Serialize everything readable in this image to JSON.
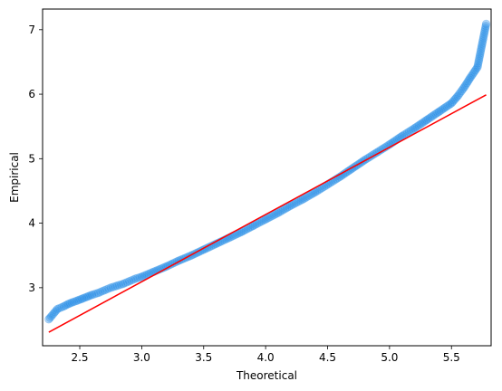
{
  "chart_data": {
    "type": "scatter",
    "title": "",
    "xlabel": "Theoretical",
    "ylabel": "Empirical",
    "xlim": [
      2.2,
      5.82
    ],
    "ylim": [
      2.1,
      7.32
    ],
    "xticks": [
      2.5,
      3.0,
      3.5,
      4.0,
      4.5,
      5.0,
      5.5
    ],
    "yticks": [
      3,
      4,
      5,
      6,
      7
    ],
    "xtick_labels": [
      "2.5",
      "3.0",
      "3.5",
      "4.0",
      "4.5",
      "5.0",
      "5.5"
    ],
    "ytick_labels": [
      "3",
      "4",
      "5",
      "6",
      "7"
    ],
    "grid": false,
    "point_color": "#1e88e5",
    "point_opacity": 0.35,
    "line_color": "#ff0000",
    "series": [
      {
        "type": "scatter",
        "x": [
          2.25,
          2.32,
          2.37,
          2.41,
          2.45,
          2.48,
          2.52,
          2.56,
          2.6,
          2.65,
          2.7,
          2.75,
          2.8,
          2.85,
          2.9,
          2.95,
          3.0,
          3.1,
          3.2,
          3.3,
          3.4,
          3.5,
          3.6,
          3.7,
          3.8,
          3.9,
          4.0,
          4.1,
          4.2,
          4.3,
          4.4,
          4.5,
          4.6,
          4.7,
          4.8,
          4.9,
          5.0,
          5.1,
          5.2,
          5.3,
          5.4,
          5.5,
          5.55,
          5.6,
          5.65,
          5.71,
          5.78
        ],
        "y": [
          2.51,
          2.67,
          2.71,
          2.75,
          2.78,
          2.8,
          2.83,
          2.86,
          2.89,
          2.92,
          2.96,
          3.0,
          3.03,
          3.06,
          3.1,
          3.14,
          3.17,
          3.25,
          3.33,
          3.42,
          3.5,
          3.59,
          3.68,
          3.77,
          3.86,
          3.96,
          4.06,
          4.16,
          4.27,
          4.37,
          4.48,
          4.6,
          4.72,
          4.85,
          4.98,
          5.1,
          5.22,
          5.35,
          5.47,
          5.6,
          5.73,
          5.86,
          5.97,
          6.1,
          6.25,
          6.42,
          7.09
        ]
      },
      {
        "type": "line",
        "x": [
          2.25,
          5.78
        ],
        "y": [
          2.31,
          5.99
        ]
      }
    ]
  }
}
